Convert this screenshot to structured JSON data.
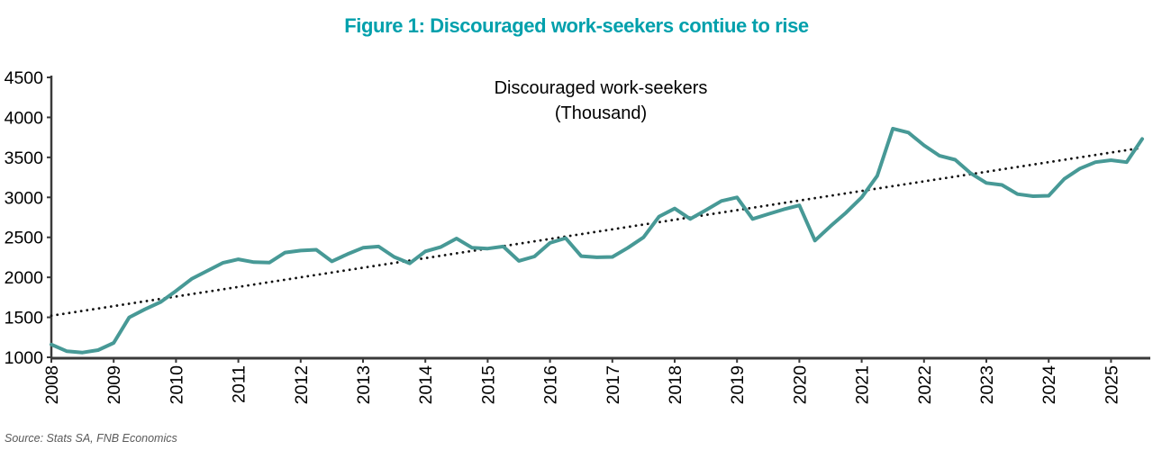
{
  "figure": {
    "title": "Figure 1: Discouraged work-seekers contiue to rise"
  },
  "source": {
    "text": "Source: Stats SA, FNB Economics"
  },
  "colors": {
    "title_teal": "#00A0AC",
    "line_teal": "#479996",
    "trend_dots": "#111111",
    "axis": "#3a3a3a",
    "tick_text": "#000000",
    "source_gray": "#595959",
    "background": "#ffffff"
  },
  "chart_data": {
    "type": "line",
    "title": "Discouraged work-seekers",
    "subtitle": "(Thousand)",
    "frequency": "quarterly",
    "x_start": "2008Q1",
    "x_end": "2025Q3",
    "x_tick_labels": [
      "2008",
      "2009",
      "2010",
      "2011",
      "2012",
      "2013",
      "2014",
      "2015",
      "2016",
      "2017",
      "2018",
      "2019",
      "2020",
      "2021",
      "2022",
      "2023",
      "2024",
      "2025"
    ],
    "y_ticks": [
      1000,
      1500,
      2000,
      2500,
      3000,
      3500,
      4000,
      4500
    ],
    "ylim": [
      1000,
      4500
    ],
    "grid": false,
    "legend": "none",
    "x_label_rotation": -90,
    "series": [
      {
        "name": "Discouraged work-seekers (thousand)",
        "style": "solid",
        "values": [
          1160,
          1075,
          1060,
          1090,
          1180,
          1500,
          1600,
          1690,
          1830,
          1980,
          2080,
          2180,
          2225,
          2190,
          2185,
          2310,
          2335,
          2345,
          2200,
          2290,
          2370,
          2385,
          2255,
          2175,
          2325,
          2380,
          2485,
          2370,
          2360,
          2385,
          2205,
          2260,
          2430,
          2490,
          2265,
          2250,
          2255,
          2370,
          2500,
          2760,
          2860,
          2730,
          2840,
          2955,
          3000,
          2730,
          2790,
          2850,
          2900,
          2460,
          2640,
          2810,
          3000,
          3270,
          3860,
          3810,
          3650,
          3520,
          3470,
          3300,
          3180,
          3155,
          3040,
          3015,
          3020,
          3230,
          3360,
          3440,
          3465,
          3440,
          3730
        ]
      },
      {
        "name": "Linear trend",
        "style": "dotted",
        "start_value": 1520,
        "end_value": 3620
      }
    ]
  }
}
